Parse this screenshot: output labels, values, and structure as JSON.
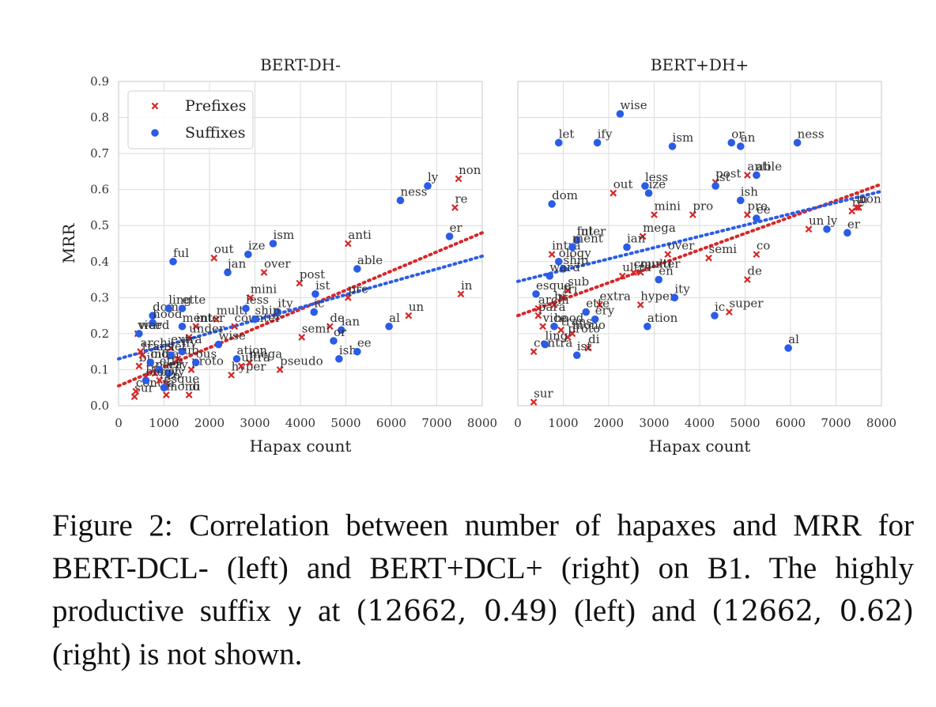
{
  "chart_data": [
    {
      "type": "scatter",
      "title": "BERT-DH-",
      "xlabel": "Hapax count",
      "ylabel": "MRR",
      "xlim": [
        0,
        8000
      ],
      "ylim": [
        0,
        0.9
      ],
      "xticks": [
        "0",
        "1000",
        "2000",
        "3000",
        "4000",
        "5000",
        "6000",
        "7000",
        "8000"
      ],
      "yticks": [
        "0.0",
        "0.1",
        "0.2",
        "0.3",
        "0.4",
        "0.5",
        "0.6",
        "0.7",
        "0.8",
        "0.9"
      ],
      "grid": true,
      "legend": "top-left",
      "series": [
        {
          "name": "Prefixes",
          "marker": "x",
          "color": "#d62728",
          "points": [
            {
              "label": "non",
              "x": 7480,
              "y": 0.63
            },
            {
              "label": "re",
              "x": 7400,
              "y": 0.55
            },
            {
              "label": "in",
              "x": 7530,
              "y": 0.31
            },
            {
              "label": "anti",
              "x": 5050,
              "y": 0.45
            },
            {
              "label": "out",
              "x": 2100,
              "y": 0.41
            },
            {
              "label": "over",
              "x": 3200,
              "y": 0.37
            },
            {
              "label": "post",
              "x": 3980,
              "y": 0.34
            },
            {
              "label": "pre",
              "x": 5050,
              "y": 0.3
            },
            {
              "label": "un",
              "x": 6380,
              "y": 0.25
            },
            {
              "label": "de",
              "x": 4650,
              "y": 0.22
            },
            {
              "label": "semi",
              "x": 4030,
              "y": 0.19
            },
            {
              "label": "pseudo",
              "x": 3550,
              "y": 0.1
            },
            {
              "label": "hyper",
              "x": 2480,
              "y": 0.085
            },
            {
              "label": "mega",
              "x": 2880,
              "y": 0.12
            },
            {
              "label": "ultra",
              "x": 2700,
              "y": 0.11
            },
            {
              "label": "multi",
              "x": 2150,
              "y": 0.24
            },
            {
              "label": "mini",
              "x": 2900,
              "y": 0.3
            },
            {
              "label": "counter",
              "x": 2550,
              "y": 0.22
            },
            {
              "label": "inter",
              "x": 1700,
              "y": 0.22
            },
            {
              "label": "under",
              "x": 1550,
              "y": 0.19
            },
            {
              "label": "extra",
              "x": 1150,
              "y": 0.16
            },
            {
              "label": "sub",
              "x": 1300,
              "y": 0.13
            },
            {
              "label": "proto",
              "x": 1600,
              "y": 0.1
            },
            {
              "label": "co",
              "x": 1050,
              "y": 0.06
            },
            {
              "label": "di",
              "x": 1550,
              "y": 0.03
            },
            {
              "label": "mono",
              "x": 1050,
              "y": 0.03
            },
            {
              "label": "sur",
              "x": 350,
              "y": 0.025
            },
            {
              "label": "contra",
              "x": 380,
              "y": 0.04
            },
            {
              "label": "tri",
              "x": 600,
              "y": 0.08
            },
            {
              "label": "bi",
              "x": 450,
              "y": 0.11
            },
            {
              "label": "intra",
              "x": 700,
              "y": 0.12
            },
            {
              "label": "poly",
              "x": 900,
              "y": 0.07
            },
            {
              "label": "vice",
              "x": 420,
              "y": 0.2
            },
            {
              "label": "trans",
              "x": 520,
              "y": 0.14
            },
            {
              "label": "para",
              "x": 800,
              "y": 0.09
            },
            {
              "label": "archi",
              "x": 480,
              "y": 0.15
            }
          ]
        },
        {
          "name": "Suffixes",
          "marker": "o",
          "color": "#2b5ce6",
          "points": [
            {
              "label": "ly",
              "x": 6800,
              "y": 0.61
            },
            {
              "label": "ness",
              "x": 6200,
              "y": 0.57
            },
            {
              "label": "er",
              "x": 7280,
              "y": 0.47
            },
            {
              "label": "ism",
              "x": 3400,
              "y": 0.45
            },
            {
              "label": "ize",
              "x": 2850,
              "y": 0.42
            },
            {
              "label": "ful",
              "x": 1200,
              "y": 0.4
            },
            {
              "label": "able",
              "x": 5250,
              "y": 0.38
            },
            {
              "label": "jan",
              "x": 2400,
              "y": 0.37
            },
            {
              "label": "ic",
              "x": 4300,
              "y": 0.26
            },
            {
              "label": "ist",
              "x": 4330,
              "y": 0.31
            },
            {
              "label": "ity",
              "x": 3500,
              "y": 0.26
            },
            {
              "label": "less",
              "x": 2800,
              "y": 0.27
            },
            {
              "label": "ship",
              "x": 3000,
              "y": 0.24
            },
            {
              "label": "ment",
              "x": 1400,
              "y": 0.22
            },
            {
              "label": "dom",
              "x": 750,
              "y": 0.25
            },
            {
              "label": "hood",
              "x": 750,
              "y": 0.23
            },
            {
              "label": "ward",
              "x": 450,
              "y": 0.2
            },
            {
              "label": "ling",
              "x": 1100,
              "y": 0.27
            },
            {
              "label": "ette",
              "x": 1400,
              "y": 0.27
            },
            {
              "label": "al",
              "x": 5950,
              "y": 0.22
            },
            {
              "label": "ian",
              "x": 4900,
              "y": 0.21
            },
            {
              "label": "or",
              "x": 4730,
              "y": 0.18
            },
            {
              "label": "ish",
              "x": 4850,
              "y": 0.13
            },
            {
              "label": "ee",
              "x": 5250,
              "y": 0.15
            },
            {
              "label": "wise",
              "x": 2200,
              "y": 0.17
            },
            {
              "label": "ation",
              "x": 2600,
              "y": 0.13
            },
            {
              "label": "ify",
              "x": 1400,
              "y": 0.15
            },
            {
              "label": "let",
              "x": 1150,
              "y": 0.14
            },
            {
              "label": "ery",
              "x": 1100,
              "y": 0.09
            },
            {
              "label": "ette2",
              "x": 900,
              "y": 0.1
            },
            {
              "label": "oid",
              "x": 700,
              "y": 0.12
            },
            {
              "label": "esque",
              "x": 1000,
              "y": 0.05
            },
            {
              "label": "ology",
              "x": 600,
              "y": 0.07
            },
            {
              "label": "ous",
              "x": 1700,
              "y": 0.12
            }
          ]
        }
      ],
      "trend_lines": [
        {
          "series": "Prefixes",
          "from": [
            0,
            0.055
          ],
          "to": [
            8000,
            0.48
          ]
        },
        {
          "series": "Suffixes",
          "from": [
            0,
            0.13
          ],
          "to": [
            8000,
            0.415
          ]
        }
      ]
    },
    {
      "type": "scatter",
      "title": "BERT+DH+",
      "xlabel": "Hapax count",
      "xlim": [
        0,
        8000
      ],
      "ylim": [
        0,
        0.9
      ],
      "xticks": [
        "0",
        "1000",
        "2000",
        "3000",
        "4000",
        "5000",
        "6000",
        "7000",
        "8000"
      ],
      "grid": true,
      "series": [
        {
          "name": "Prefixes",
          "marker": "x",
          "color": "#d62728",
          "points": [
            {
              "label": "anti",
              "x": 5050,
              "y": 0.64
            },
            {
              "label": "post",
              "x": 4350,
              "y": 0.62
            },
            {
              "label": "out",
              "x": 2100,
              "y": 0.59
            },
            {
              "label": "pre",
              "x": 5050,
              "y": 0.53
            },
            {
              "label": "mini",
              "x": 3000,
              "y": 0.53
            },
            {
              "label": "pro",
              "x": 3850,
              "y": 0.53
            },
            {
              "label": "non",
              "x": 7500,
              "y": 0.55
            },
            {
              "label": "re",
              "x": 7350,
              "y": 0.54
            },
            {
              "label": "in",
              "x": 7450,
              "y": 0.55
            },
            {
              "label": "un",
              "x": 6400,
              "y": 0.49
            },
            {
              "label": "mega",
              "x": 2750,
              "y": 0.47
            },
            {
              "label": "over",
              "x": 3300,
              "y": 0.42
            },
            {
              "label": "semi",
              "x": 4200,
              "y": 0.41
            },
            {
              "label": "co",
              "x": 5250,
              "y": 0.42
            },
            {
              "label": "de",
              "x": 5050,
              "y": 0.35
            },
            {
              "label": "super",
              "x": 4650,
              "y": 0.26
            },
            {
              "label": "hyper",
              "x": 2700,
              "y": 0.28
            },
            {
              "label": "multi",
              "x": 2700,
              "y": 0.37
            },
            {
              "label": "inter",
              "x": 1300,
              "y": 0.46
            },
            {
              "label": "intra",
              "x": 750,
              "y": 0.42
            },
            {
              "label": "ultra",
              "x": 2300,
              "y": 0.36
            },
            {
              "label": "extra",
              "x": 1800,
              "y": 0.28
            },
            {
              "label": "counter",
              "x": 2550,
              "y": 0.37
            },
            {
              "label": "sub",
              "x": 1100,
              "y": 0.32
            },
            {
              "label": "tri",
              "x": 1000,
              "y": 0.3
            },
            {
              "label": "bi",
              "x": 800,
              "y": 0.28
            },
            {
              "label": "di",
              "x": 1550,
              "y": 0.16
            },
            {
              "label": "mono",
              "x": 1200,
              "y": 0.2
            },
            {
              "label": "contra",
              "x": 350,
              "y": 0.15
            },
            {
              "label": "sur",
              "x": 350,
              "y": 0.01
            },
            {
              "label": "para",
              "x": 450,
              "y": 0.25
            },
            {
              "label": "vice",
              "x": 550,
              "y": 0.22
            },
            {
              "label": "archi",
              "x": 450,
              "y": 0.27
            },
            {
              "label": "trans",
              "x": 950,
              "y": 0.21
            },
            {
              "label": "proto",
              "x": 1100,
              "y": 0.19
            }
          ]
        },
        {
          "name": "Suffixes",
          "marker": "o",
          "color": "#2b5ce6",
          "points": [
            {
              "label": "wise",
              "x": 2250,
              "y": 0.81
            },
            {
              "label": "let",
              "x": 900,
              "y": 0.73
            },
            {
              "label": "ify",
              "x": 1750,
              "y": 0.73
            },
            {
              "label": "ism",
              "x": 3400,
              "y": 0.72
            },
            {
              "label": "or",
              "x": 4700,
              "y": 0.73
            },
            {
              "label": "an",
              "x": 4900,
              "y": 0.72
            },
            {
              "label": "ness",
              "x": 6150,
              "y": 0.73
            },
            {
              "label": "able",
              "x": 5250,
              "y": 0.64
            },
            {
              "label": "less",
              "x": 2800,
              "y": 0.61
            },
            {
              "label": "ize",
              "x": 2880,
              "y": 0.59
            },
            {
              "label": "ist",
              "x": 4350,
              "y": 0.61
            },
            {
              "label": "ish",
              "x": 4900,
              "y": 0.57
            },
            {
              "label": "dom",
              "x": 750,
              "y": 0.56
            },
            {
              "label": "ee",
              "x": 5250,
              "y": 0.52
            },
            {
              "label": "ly",
              "x": 6800,
              "y": 0.49
            },
            {
              "label": "er",
              "x": 7250,
              "y": 0.48
            },
            {
              "label": "ful",
              "x": 1300,
              "y": 0.46
            },
            {
              "label": "ian",
              "x": 2400,
              "y": 0.44
            },
            {
              "label": "ship",
              "x": 1000,
              "y": 0.38
            },
            {
              "label": "ward",
              "x": 700,
              "y": 0.36
            },
            {
              "label": "en",
              "x": 3100,
              "y": 0.35
            },
            {
              "label": "ity",
              "x": 3450,
              "y": 0.3
            },
            {
              "label": "ation",
              "x": 2850,
              "y": 0.22
            },
            {
              "label": "ic",
              "x": 4330,
              "y": 0.25
            },
            {
              "label": "al",
              "x": 5950,
              "y": 0.16
            },
            {
              "label": "ist2",
              "x": 1300,
              "y": 0.14
            },
            {
              "label": "ling",
              "x": 600,
              "y": 0.17
            },
            {
              "label": "hood",
              "x": 800,
              "y": 0.22
            },
            {
              "label": "ette",
              "x": 1500,
              "y": 0.26
            },
            {
              "label": "ery",
              "x": 1700,
              "y": 0.24
            },
            {
              "label": "ment",
              "x": 1200,
              "y": 0.44
            },
            {
              "label": "ology",
              "x": 900,
              "y": 0.4
            },
            {
              "label": "esque",
              "x": 400,
              "y": 0.31
            }
          ]
        }
      ],
      "trend_lines": [
        {
          "series": "Prefixes",
          "from": [
            0,
            0.25
          ],
          "to": [
            8000,
            0.615
          ]
        },
        {
          "series": "Suffixes",
          "from": [
            0,
            0.345
          ],
          "to": [
            8000,
            0.595
          ]
        }
      ]
    }
  ],
  "legend": {
    "prefixes": "Prefixes",
    "suffixes": "Suffixes"
  },
  "caption": {
    "part1": "Figure 2: Correlation between number of hapaxes and MRR for BERT-DCL- (left) and BERT+DCL+ (right) on B1. The highly productive suffix ",
    "code": "y",
    "part2": " at ",
    "coord_left": "(12662, 0.49)",
    "part3": " (left) and ",
    "coord_right": "(12662, 0.62)",
    "part4": " (right) is not shown."
  }
}
